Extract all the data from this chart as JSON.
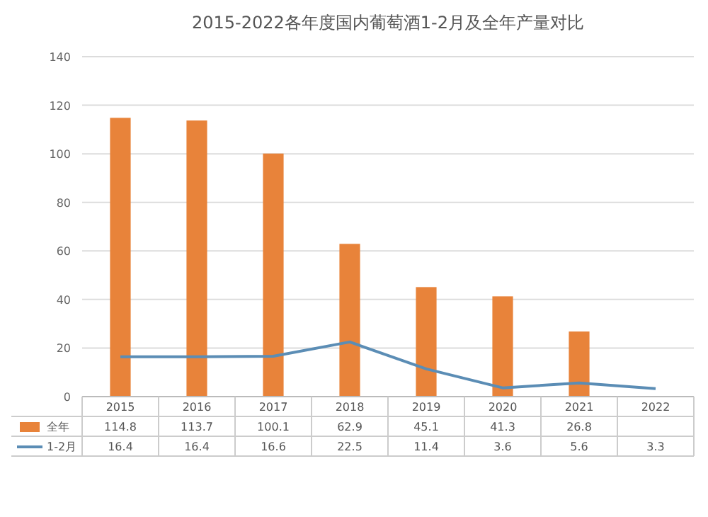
{
  "chart_data": {
    "type": "bar",
    "title": "2015-2022各年度国内葡萄酒1-2月及全年产量对比",
    "categories": [
      "2015",
      "2016",
      "2017",
      "2018",
      "2019",
      "2020",
      "2021",
      "2022"
    ],
    "series": [
      {
        "name": "全年",
        "color": "#e8833a",
        "values": [
          114.8,
          113.7,
          100.1,
          62.9,
          45.1,
          41.3,
          26.8,
          null
        ]
      },
      {
        "name": "1-2月",
        "type": "line",
        "color": "#5b8db5",
        "values": [
          16.4,
          16.4,
          16.6,
          22.5,
          11.4,
          3.6,
          5.6,
          3.3
        ]
      }
    ],
    "ylim": [
      0,
      140
    ],
    "yticks": [
      0,
      20,
      40,
      60,
      80,
      100,
      120,
      140
    ],
    "grid": "y",
    "data_labels": true,
    "legend": "bottom",
    "marker": "none",
    "line_style": "solid"
  }
}
